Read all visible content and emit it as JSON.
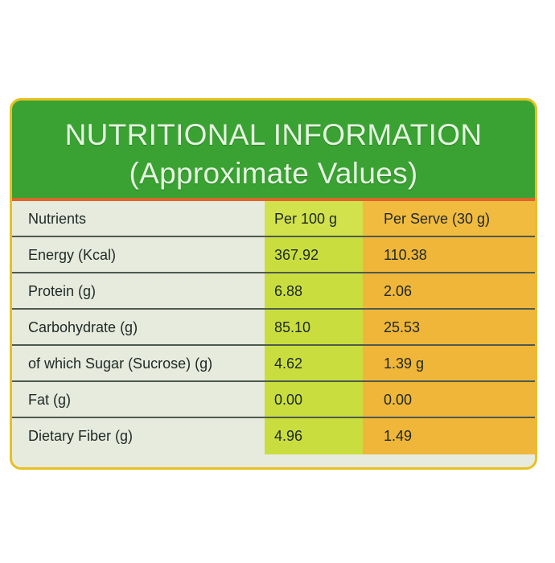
{
  "title": {
    "line1": "NUTRITIONAL INFORMATION",
    "line2": "(Approximate Values)"
  },
  "table": {
    "headers": [
      "Nutrients",
      "Per 100 g",
      "Per Serve (30 g)"
    ],
    "rows": [
      [
        "Energy (Kcal)",
        "367.92",
        "110.38"
      ],
      [
        "Protein (g)",
        "6.88",
        "2.06"
      ],
      [
        "Carbohydrate (g)",
        "85.10",
        "25.53"
      ],
      [
        "of which Sugar (Sucrose) (g)",
        "4.62",
        "1.39 g"
      ],
      [
        "Fat (g)",
        "0.00",
        "0.00"
      ],
      [
        "Dietary Fiber (g)",
        "4.96",
        "1.49"
      ]
    ]
  },
  "colors": {
    "header_green": "#3aa233",
    "per100_column": "#c9de3e",
    "perserve_column": "#efb63a",
    "nutrient_column": "#e7ebde",
    "border_yellow": "#e8c020",
    "divider_orange": "#d9662a"
  }
}
